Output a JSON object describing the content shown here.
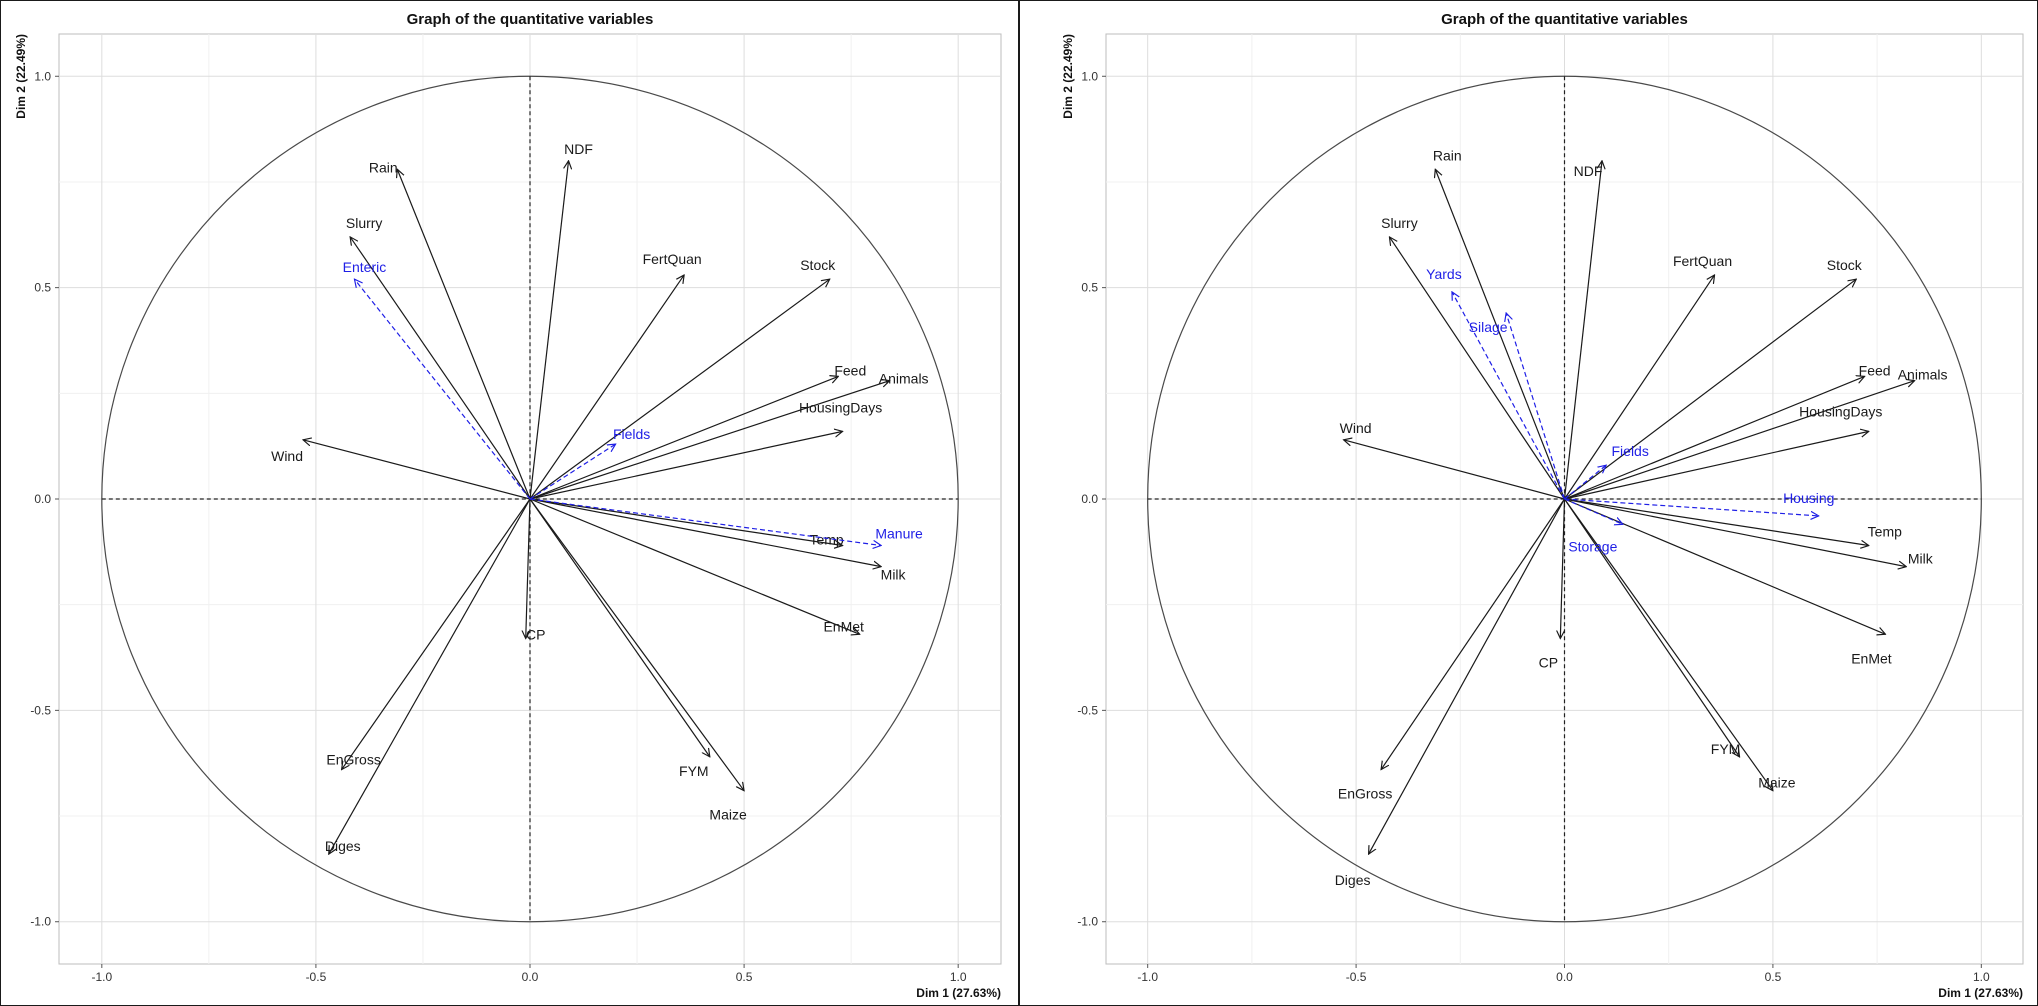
{
  "chart_data": [
    {
      "type": "scatter",
      "subtype": "pca-correlation-circle",
      "title": "Graph of the quantitative variables",
      "xlabel": "Dim 1 (27.63%)",
      "ylabel": "Dim 2 (22.49%)",
      "xlim": [
        -1.1,
        1.1
      ],
      "ylim": [
        -1.1,
        1.1
      ],
      "ticks": [
        -1.0,
        -0.5,
        0.0,
        0.5,
        1.0
      ],
      "tick_labels": [
        "-1.0",
        "-0.5",
        "0.0",
        "0.5",
        "1.0"
      ],
      "grid": true,
      "unit_circle": true,
      "colors": {
        "active": "#1a1a1a",
        "supplementary": "#1f1fe6"
      },
      "series": [
        {
          "group": "active",
          "variables": [
            {
              "label": "NDF",
              "x": 0.09,
              "y": 0.8
            },
            {
              "label": "Rain",
              "x": -0.31,
              "y": 0.78
            },
            {
              "label": "Slurry",
              "x": -0.42,
              "y": 0.62
            },
            {
              "label": "FertQuan",
              "x": 0.36,
              "y": 0.53
            },
            {
              "label": "Stock",
              "x": 0.7,
              "y": 0.52
            },
            {
              "label": "Feed",
              "x": 0.72,
              "y": 0.29
            },
            {
              "label": "Animals",
              "x": 0.84,
              "y": 0.28
            },
            {
              "label": "HousingDays",
              "x": 0.73,
              "y": 0.16
            },
            {
              "label": "Wind",
              "x": -0.53,
              "y": 0.14
            },
            {
              "label": "Temp",
              "x": 0.73,
              "y": -0.11
            },
            {
              "label": "Milk",
              "x": 0.82,
              "y": -0.16
            },
            {
              "label": "EnMet",
              "x": 0.77,
              "y": -0.32
            },
            {
              "label": "CP",
              "x": -0.01,
              "y": -0.33
            },
            {
              "label": "FYM",
              "x": 0.42,
              "y": -0.61
            },
            {
              "label": "Maize",
              "x": 0.5,
              "y": -0.69
            },
            {
              "label": "EnGross",
              "x": -0.44,
              "y": -0.64
            },
            {
              "label": "Diges",
              "x": -0.47,
              "y": -0.84
            }
          ]
        },
        {
          "group": "supplementary",
          "variables": [
            {
              "label": "Enteric",
              "x": -0.41,
              "y": 0.52
            },
            {
              "label": "Fields",
              "x": 0.2,
              "y": 0.13
            },
            {
              "label": "Manure",
              "x": 0.82,
              "y": -0.11
            }
          ]
        }
      ]
    },
    {
      "type": "scatter",
      "subtype": "pca-correlation-circle",
      "title": "Graph of the quantitative variables",
      "xlabel": "Dim 1 (27.63%)",
      "ylabel": "Dim 2 (22.49%)",
      "xlim": [
        -1.1,
        1.1
      ],
      "ylim": [
        -1.1,
        1.1
      ],
      "ticks": [
        -1.0,
        -0.5,
        0.0,
        0.5,
        1.0
      ],
      "tick_labels": [
        "-1.0",
        "-0.5",
        "0.0",
        "0.5",
        "1.0"
      ],
      "grid": true,
      "unit_circle": true,
      "colors": {
        "active": "#1a1a1a",
        "supplementary": "#1f1fe6"
      },
      "series": [
        {
          "group": "active",
          "variables": [
            {
              "label": "NDF",
              "x": 0.09,
              "y": 0.8
            },
            {
              "label": "Rain",
              "x": -0.31,
              "y": 0.78
            },
            {
              "label": "Slurry",
              "x": -0.42,
              "y": 0.62
            },
            {
              "label": "FertQuan",
              "x": 0.36,
              "y": 0.53
            },
            {
              "label": "Stock",
              "x": 0.7,
              "y": 0.52
            },
            {
              "label": "Feed",
              "x": 0.72,
              "y": 0.29
            },
            {
              "label": "Animals",
              "x": 0.84,
              "y": 0.28
            },
            {
              "label": "HousingDays",
              "x": 0.73,
              "y": 0.16
            },
            {
              "label": "Wind",
              "x": -0.53,
              "y": 0.14
            },
            {
              "label": "Temp",
              "x": 0.73,
              "y": -0.11
            },
            {
              "label": "Milk",
              "x": 0.82,
              "y": -0.16
            },
            {
              "label": "EnMet",
              "x": 0.77,
              "y": -0.32
            },
            {
              "label": "CP",
              "x": -0.01,
              "y": -0.33
            },
            {
              "label": "FYM",
              "x": 0.42,
              "y": -0.61
            },
            {
              "label": "Maize",
              "x": 0.5,
              "y": -0.69
            },
            {
              "label": "EnGross",
              "x": -0.44,
              "y": -0.64
            },
            {
              "label": "Diges",
              "x": -0.47,
              "y": -0.84
            }
          ]
        },
        {
          "group": "supplementary",
          "variables": [
            {
              "label": "Yards",
              "x": -0.27,
              "y": 0.49
            },
            {
              "label": "Silage",
              "x": -0.14,
              "y": 0.44
            },
            {
              "label": "Fields",
              "x": 0.1,
              "y": 0.08
            },
            {
              "label": "Housing",
              "x": 0.61,
              "y": -0.04
            },
            {
              "label": "Storage",
              "x": 0.14,
              "y": -0.06
            }
          ]
        }
      ]
    }
  ]
}
